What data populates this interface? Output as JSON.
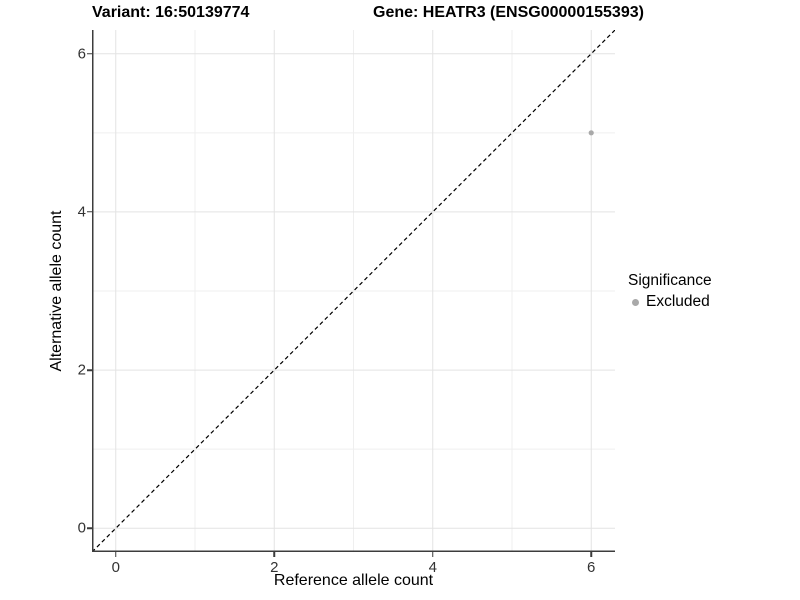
{
  "header": {
    "variant_title": "Variant: 16:50139774",
    "gene_title": "Gene: HEATR3 (ENSG00000155393)"
  },
  "axes": {
    "x_title": "Reference allele count",
    "y_title": "Alternative allele count"
  },
  "legend": {
    "title": "Significance",
    "items": [
      {
        "label": "Excluded",
        "color": "#a9a9a9"
      }
    ]
  },
  "chart_data": {
    "type": "scatter",
    "title_left": "Variant: 16:50139774",
    "title_right": "Gene: HEATR3 (ENSG00000155393)",
    "xlabel": "Reference allele count",
    "ylabel": "Alternative allele count",
    "xlim": [
      -0.3,
      6.3
    ],
    "ylim": [
      -0.3,
      6.3
    ],
    "x_major_ticks": [
      0,
      2,
      4,
      6
    ],
    "y_major_ticks": [
      0,
      2,
      4,
      6
    ],
    "x_minor_ticks": [
      1,
      3,
      5
    ],
    "y_minor_ticks": [
      1,
      3,
      5
    ],
    "grid": true,
    "legend_position": "right",
    "series": [
      {
        "name": "Excluded",
        "color": "#a9a9a9",
        "points": [
          {
            "x": 6,
            "y": 5
          }
        ]
      }
    ],
    "reference_line": {
      "kind": "identity y=x",
      "from": [
        -0.3,
        -0.3
      ],
      "to": [
        6.3,
        6.3
      ],
      "style": "dashed",
      "color": "#000000"
    },
    "colors": {
      "background": "#ffffff",
      "grid_major": "#e3e3e3",
      "grid_minor": "#efefef",
      "axis_line": "#3c3c3c",
      "tick_text": "#333333",
      "point": "#a9a9a9"
    }
  }
}
